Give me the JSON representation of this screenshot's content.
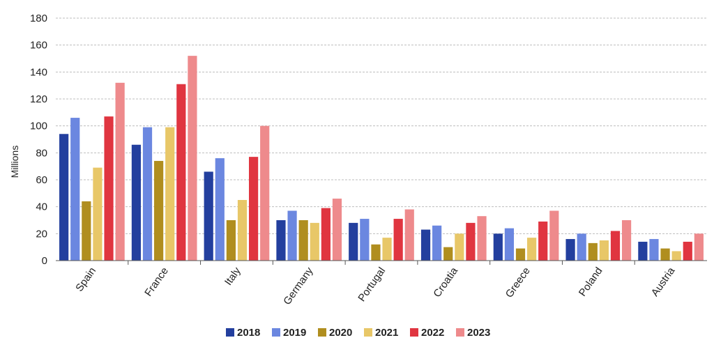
{
  "chart_data": {
    "type": "bar",
    "title": "",
    "xlabel": "",
    "ylabel": "Millions",
    "ylim": [
      0,
      180
    ],
    "yticks": [
      0,
      20,
      40,
      60,
      80,
      100,
      120,
      140,
      160,
      180
    ],
    "grid": true,
    "legend_position": "bottom",
    "categories": [
      "Spain",
      "France",
      "Italy",
      "Germany",
      "Portugal",
      "Croatia",
      "Greece",
      "Poland",
      "Austria"
    ],
    "series": [
      {
        "name": "2018",
        "color": "#233f9e",
        "values": [
          94,
          86,
          66,
          30,
          28,
          23,
          20,
          16,
          14
        ]
      },
      {
        "name": "2019",
        "color": "#6b87e0",
        "values": [
          106,
          99,
          76,
          37,
          31,
          26,
          24,
          20,
          16
        ]
      },
      {
        "name": "2020",
        "color": "#b08e1f",
        "values": [
          44,
          74,
          30,
          30,
          12,
          10,
          9,
          13,
          9
        ]
      },
      {
        "name": "2021",
        "color": "#e8c768",
        "values": [
          69,
          99,
          45,
          28,
          17,
          20,
          17,
          15,
          7
        ]
      },
      {
        "name": "2022",
        "color": "#e03540",
        "values": [
          107,
          131,
          77,
          39,
          31,
          28,
          29,
          22,
          14
        ]
      },
      {
        "name": "2023",
        "color": "#ee8a8c",
        "values": [
          132,
          152,
          100,
          46,
          38,
          33,
          37,
          30,
          20
        ]
      }
    ]
  }
}
